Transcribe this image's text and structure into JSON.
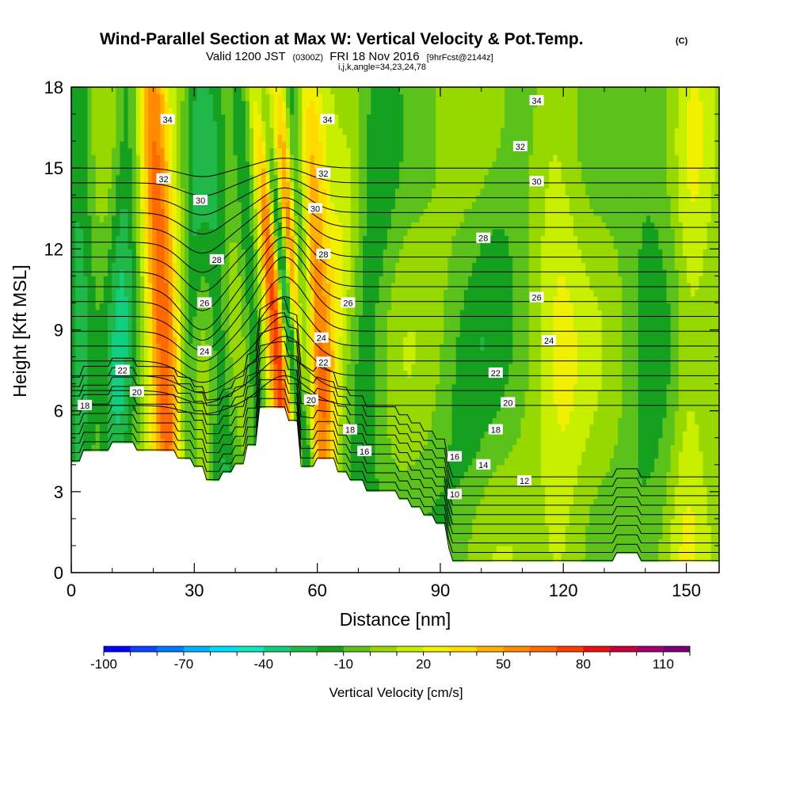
{
  "chart_data": {
    "type": "contour",
    "title": "Wind-Parallel Section at Max W: Vertical Velocity & Pot.Temp.",
    "copyright": "(C)",
    "subtitle": {
      "valid": "Valid 1200 JST",
      "utc": "(0300Z)",
      "date": "FRI 18 Nov 2016",
      "forecast": "[9hrFcst@2144z]",
      "indices": "i,j,k,angle=34,23,24,78"
    },
    "xlabel": "Distance [nm]",
    "ylabel": "Height [Kft MSL]",
    "xlim": [
      0,
      158
    ],
    "ylim": [
      0,
      18
    ],
    "xticks": [
      0,
      30,
      60,
      90,
      120,
      150
    ],
    "yticks": [
      0,
      3,
      6,
      9,
      12,
      15,
      18
    ],
    "colorbar": {
      "label": "Vertical Velocity [cm/s]",
      "tick_labels": [
        -100,
        -70,
        -40,
        -10,
        20,
        50,
        80,
        110
      ],
      "levels": [
        -100,
        -90,
        -80,
        -70,
        -60,
        -50,
        -40,
        -30,
        -20,
        -10,
        0,
        10,
        20,
        30,
        40,
        50,
        60,
        70,
        80,
        90,
        100,
        110,
        120
      ],
      "colors": [
        "#0000ff",
        "#0a46ff",
        "#0078ff",
        "#00b4ff",
        "#00dcff",
        "#10e8c0",
        "#10d080",
        "#20b848",
        "#16a020",
        "#5ac21a",
        "#96d800",
        "#c8ee00",
        "#f0f000",
        "#ffdc00",
        "#ffb000",
        "#ff8c00",
        "#ff6a00",
        "#ff3c00",
        "#e81010",
        "#c8003c",
        "#a0006e",
        "#780078"
      ]
    },
    "theta_labels": [
      {
        "text": "34",
        "x": 23.5,
        "y": 16.8
      },
      {
        "text": "32",
        "x": 22.5,
        "y": 14.6
      },
      {
        "text": "30",
        "x": 31.5,
        "y": 13.8
      },
      {
        "text": "28",
        "x": 35.5,
        "y": 11.6
      },
      {
        "text": "26",
        "x": 32.5,
        "y": 10.0
      },
      {
        "text": "24",
        "x": 32.5,
        "y": 8.2
      },
      {
        "text": "22",
        "x": 12.5,
        "y": 7.5
      },
      {
        "text": "20",
        "x": 16.0,
        "y": 6.7
      },
      {
        "text": "18",
        "x": 3.3,
        "y": 6.2
      },
      {
        "text": "34",
        "x": 62.5,
        "y": 16.8
      },
      {
        "text": "32",
        "x": 61.5,
        "y": 14.8
      },
      {
        "text": "30",
        "x": 59.5,
        "y": 13.5
      },
      {
        "text": "28",
        "x": 61.5,
        "y": 11.8
      },
      {
        "text": "26",
        "x": 67.5,
        "y": 10.0
      },
      {
        "text": "24",
        "x": 61.0,
        "y": 8.7
      },
      {
        "text": "22",
        "x": 61.5,
        "y": 7.8
      },
      {
        "text": "20",
        "x": 58.5,
        "y": 6.4
      },
      {
        "text": "18",
        "x": 68.0,
        "y": 5.3
      },
      {
        "text": "16",
        "x": 71.5,
        "y": 4.5
      },
      {
        "text": "34",
        "x": 113.5,
        "y": 17.5
      },
      {
        "text": "32",
        "x": 109.5,
        "y": 15.8
      },
      {
        "text": "30",
        "x": 113.5,
        "y": 14.5
      },
      {
        "text": "28",
        "x": 100.5,
        "y": 12.4
      },
      {
        "text": "26",
        "x": 113.5,
        "y": 10.2
      },
      {
        "text": "24",
        "x": 116.5,
        "y": 8.6
      },
      {
        "text": "22",
        "x": 103.5,
        "y": 7.4
      },
      {
        "text": "20",
        "x": 106.5,
        "y": 6.3
      },
      {
        "text": "18",
        "x": 103.5,
        "y": 5.3
      },
      {
        "text": "16",
        "x": 93.5,
        "y": 4.3
      },
      {
        "text": "14",
        "x": 100.5,
        "y": 4.0
      },
      {
        "text": "12",
        "x": 110.5,
        "y": 3.4
      },
      {
        "text": "10",
        "x": 93.5,
        "y": 2.9
      }
    ],
    "terrain": [
      [
        0,
        4.1
      ],
      [
        2,
        4.1
      ],
      [
        3,
        4.5
      ],
      [
        9,
        4.5
      ],
      [
        10,
        4.8
      ],
      [
        15,
        4.8
      ],
      [
        16,
        4.5
      ],
      [
        25,
        4.5
      ],
      [
        26,
        4.2
      ],
      [
        29,
        4.2
      ],
      [
        30,
        3.9
      ],
      [
        32,
        3.9
      ],
      [
        33,
        3.4
      ],
      [
        36,
        3.4
      ],
      [
        37,
        3.7
      ],
      [
        39,
        3.7
      ],
      [
        40,
        4.0
      ],
      [
        42,
        4.0
      ],
      [
        43,
        4.7
      ],
      [
        45,
        4.7
      ],
      [
        46,
        6.1
      ],
      [
        52,
        6.1
      ],
      [
        53,
        5.6
      ],
      [
        55,
        5.6
      ],
      [
        56,
        3.9
      ],
      [
        59,
        3.9
      ],
      [
        60,
        4.2
      ],
      [
        64,
        4.2
      ],
      [
        65,
        3.7
      ],
      [
        67,
        3.7
      ],
      [
        68,
        3.4
      ],
      [
        71,
        3.4
      ],
      [
        72,
        3.0
      ],
      [
        79,
        3.0
      ],
      [
        80,
        2.7
      ],
      [
        82,
        2.7
      ],
      [
        83,
        2.4
      ],
      [
        85,
        2.4
      ],
      [
        86,
        2.1
      ],
      [
        88,
        2.1
      ],
      [
        89,
        1.8
      ],
      [
        91,
        1.8
      ],
      [
        92,
        0.9
      ],
      [
        93,
        0.4
      ],
      [
        132,
        0.4
      ],
      [
        133,
        0.7
      ],
      [
        138,
        0.7
      ],
      [
        139,
        0.4
      ],
      [
        158,
        0.4
      ]
    ],
    "w_features": [
      {
        "value": 65,
        "a": 24.5,
        "b": 20.0,
        "sx": 2.6,
        "sy": 6.0
      },
      {
        "value": 40,
        "a": 33.0,
        "b": 29.0,
        "sx": 3.5,
        "sy": 4.5
      },
      {
        "value": -45,
        "a": 37.0,
        "b": 32.0,
        "sx": 4.5,
        "sy": 5.0
      },
      {
        "value": -30,
        "a": 46.0,
        "b": 41.0,
        "sx": 2.5,
        "sy": 4.0
      },
      {
        "value": -35,
        "a": 28.0,
        "b": 30.0,
        "sx": 2.0,
        "sy": 3.0
      },
      {
        "value": 30,
        "a": 44.0,
        "b": 38.0,
        "sx": 2.6,
        "sy": 4.0
      },
      {
        "value": 110,
        "a": 58.0,
        "b": 51.0,
        "sx": 1.4,
        "sy": 3.0
      },
      {
        "value": 80,
        "a": 54.0,
        "b": 46.0,
        "sx": 2.0,
        "sy": 4.0
      },
      {
        "value": -85,
        "a": 60.0,
        "b": 46.5,
        "sx": 1.3,
        "sy": 3.5
      },
      {
        "value": -55,
        "a": 58.0,
        "b": 53.0,
        "sx": 2.0,
        "sy": 4.5
      },
      {
        "value": 55,
        "a": 62.0,
        "b": 58.0,
        "sx": 2.5,
        "sy": 3.0
      },
      {
        "value": 25,
        "a": 58.0,
        "b": 70.0,
        "sx": 3.0,
        "sy": 2.5
      },
      {
        "value": -30,
        "a": 10.0,
        "b": 14.0,
        "sx": 2.5,
        "sy": 6.0
      },
      {
        "value": -25,
        "a": 2.0,
        "b": 2.0,
        "sx": 2.5,
        "sy": 7.0
      },
      {
        "value": -20,
        "a": 70.0,
        "b": 75.0,
        "sx": 4.0,
        "sy": 5.0
      },
      {
        "value": -15,
        "a": 90.0,
        "b": 110.0,
        "sx": 6.0,
        "sy": 8.0
      },
      {
        "value": 15,
        "a": 120.0,
        "b": 118.0,
        "sx": 4.0,
        "sy": 7.0
      },
      {
        "value": -15,
        "a": 140.0,
        "b": 142.0,
        "sx": 5.0,
        "sy": 8.0
      },
      {
        "value": 15,
        "a": 150.0,
        "b": 152.0,
        "sx": 3.0,
        "sy": 8.0
      }
    ]
  }
}
